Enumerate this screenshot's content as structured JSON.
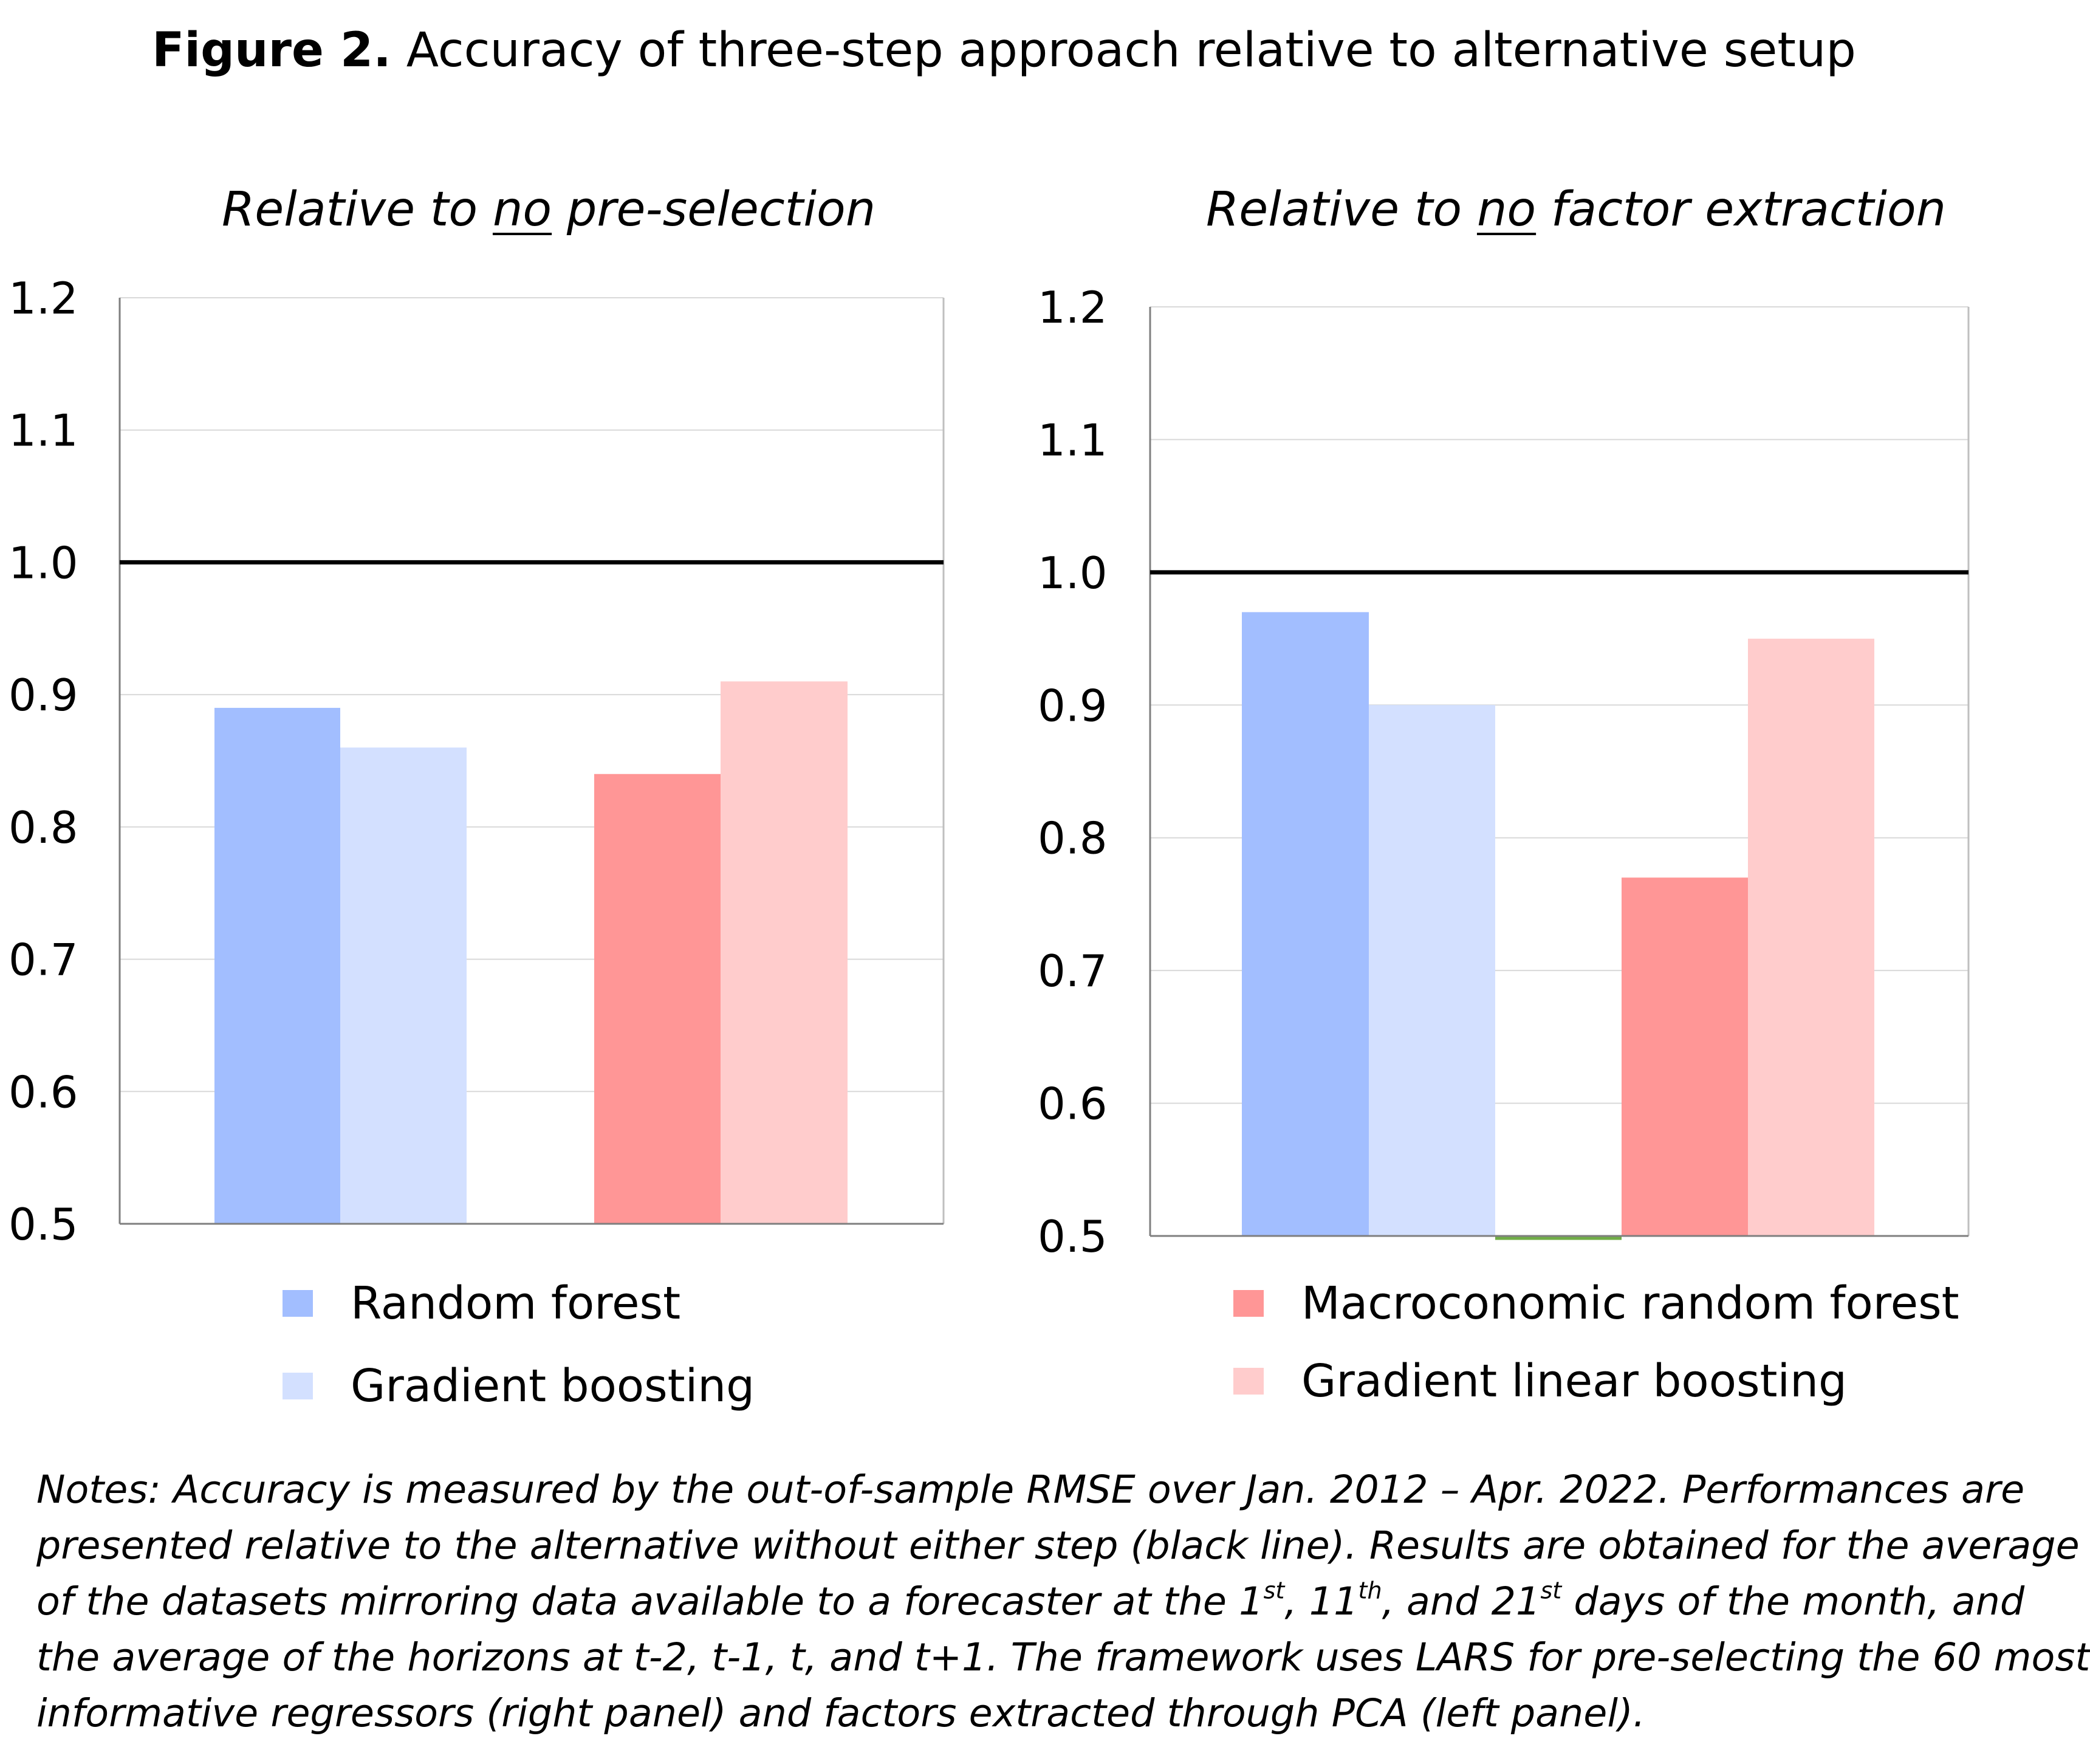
{
  "figure": {
    "label": "Figure 2.",
    "title": "Accuracy of three-step approach relative to alternative setup"
  },
  "colors": {
    "random_forest": "#a2beff",
    "gradient_boosting": "#d3e0ff",
    "macroeconomic_random_forest": "#ff9696",
    "gradient_linear_boosting": "#ffcccc",
    "gridline": "#d9d9d9",
    "reference_line": "#000000",
    "baseline_marker": "#70ad47"
  },
  "chart_data": [
    {
      "type": "bar",
      "title_prefix": "Relative to ",
      "title_emphasis": "no",
      "title_suffix": " pre-selection",
      "ylim": [
        0.5,
        1.2
      ],
      "yticks": [
        "0.5",
        "0.6",
        "0.7",
        "0.8",
        "0.9",
        "1.0",
        "1.1",
        "1.2"
      ],
      "reference_line": 1.0,
      "grid": true,
      "categories": [
        "",
        "",
        ""
      ],
      "series": [
        {
          "name": "Random forest",
          "values": [
            0.89,
            null,
            null
          ]
        },
        {
          "name": "Gradient boosting",
          "values": [
            0.86,
            null,
            null
          ]
        },
        {
          "name": "Macroconomic random forest",
          "values": [
            null,
            null,
            0.84
          ]
        },
        {
          "name": "Gradient linear boosting",
          "values": [
            null,
            null,
            0.91
          ]
        }
      ]
    },
    {
      "type": "bar",
      "title_prefix": "Relative to ",
      "title_emphasis": "no",
      "title_suffix": " factor extraction",
      "ylim": [
        0.5,
        1.2
      ],
      "yticks": [
        "0.5",
        "0.6",
        "0.7",
        "0.8",
        "0.9",
        "1.0",
        "1.1",
        "1.2"
      ],
      "reference_line": 1.0,
      "grid": true,
      "categories": [
        "",
        "",
        ""
      ],
      "series": [
        {
          "name": "Random forest",
          "values": [
            0.97,
            null,
            null
          ]
        },
        {
          "name": "Gradient boosting",
          "values": [
            0.9,
            null,
            null
          ]
        },
        {
          "name": "Macroconomic random forest",
          "values": [
            null,
            null,
            0.77
          ]
        },
        {
          "name": "Gradient linear boosting",
          "values": [
            null,
            null,
            0.95
          ]
        }
      ]
    }
  ],
  "legend": {
    "left": [
      "Random forest",
      "Gradient boosting"
    ],
    "right": [
      "Macroconomic random forest",
      "Gradient linear boosting"
    ]
  },
  "notes": {
    "line1": "Notes: Accuracy is measured by the out-of-sample RMSE over Jan. 2012 – Apr. 2022. Performances are",
    "line2": "presented relative to the alternative without either step (black line). Results are obtained for the average",
    "line3_a": "of the datasets mirroring data available to a forecaster at the 1",
    "line3_sup1": "st",
    "line3_b": ", 11",
    "line3_sup2": "th",
    "line3_c": ", and 21",
    "line3_sup3": "st",
    "line3_d": " days of the month, and",
    "line4": "the average of the horizons at t-2, t-1, t, and t+1. The framework uses LARS for pre-selecting the 60 most",
    "line5": "informative regressors (right panel) and factors extracted through PCA (left panel)."
  }
}
